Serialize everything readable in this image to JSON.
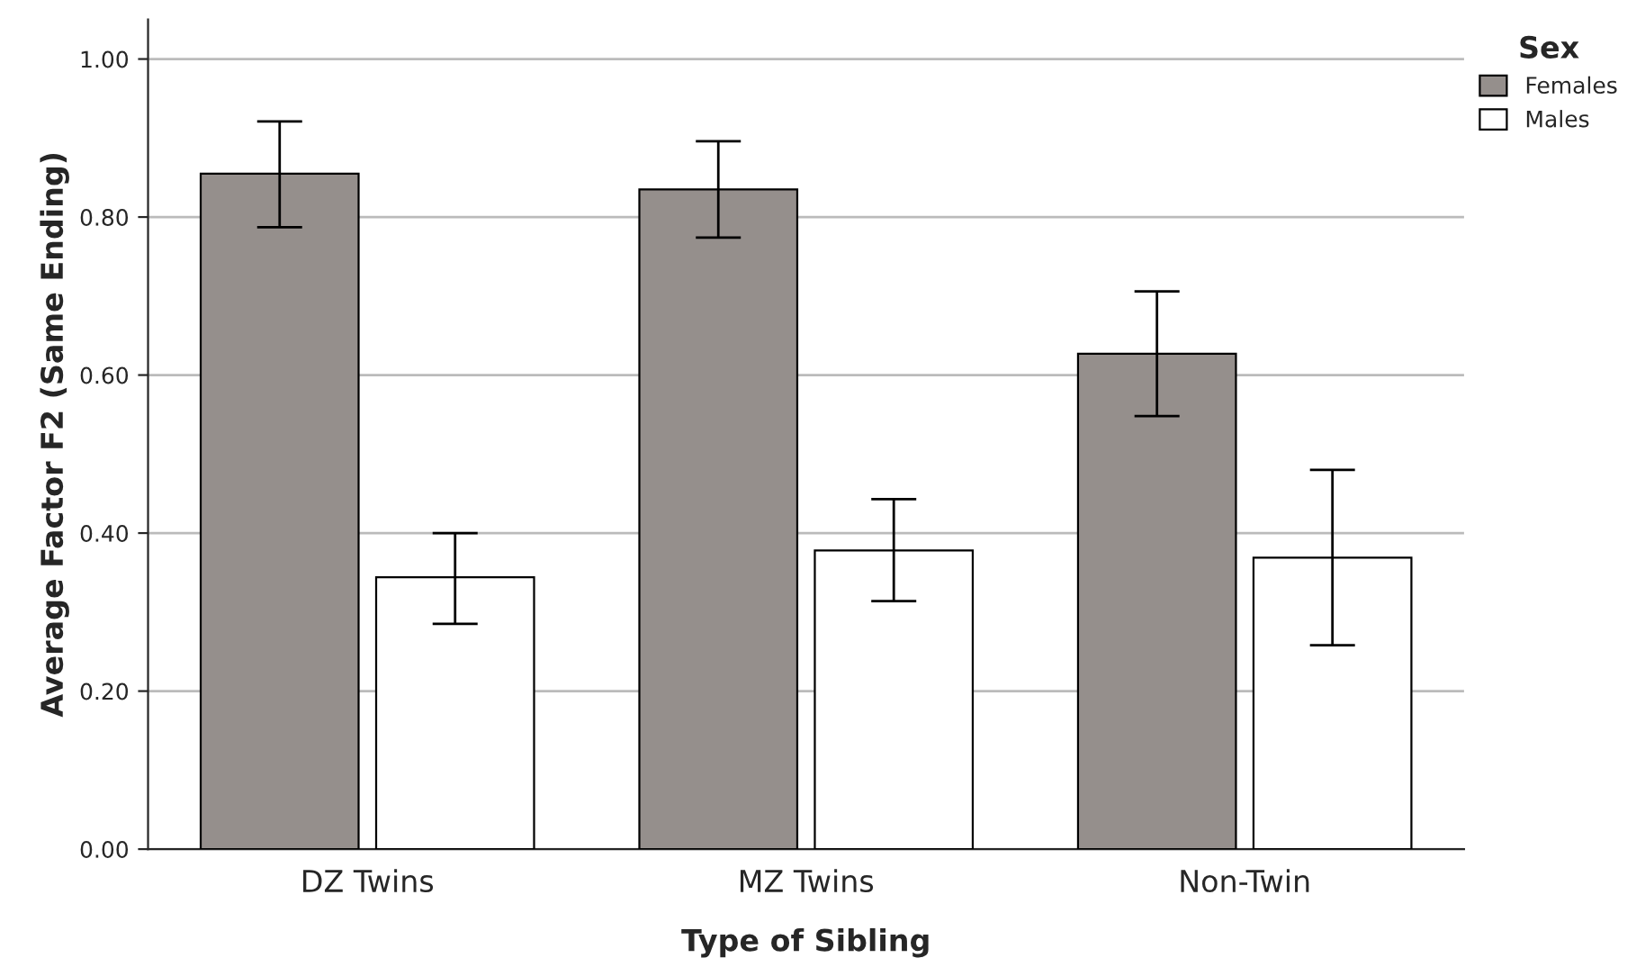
{
  "chart_data": {
    "type": "bar",
    "xlabel": "Type of Sibling",
    "ylabel": "Average Factor F2 (Same Ending)",
    "legend_title": "Sex",
    "categories": [
      "DZ Twins",
      "MZ Twins",
      "Non-Twin"
    ],
    "series": [
      {
        "name": "Females",
        "color": "#958f8c",
        "values": [
          0.855,
          0.835,
          0.627
        ],
        "errors": [
          [
            0.787,
            0.921
          ],
          [
            0.774,
            0.896
          ],
          [
            0.548,
            0.706
          ]
        ]
      },
      {
        "name": "Males",
        "color": "#ffffff",
        "values": [
          0.344,
          0.378,
          0.369
        ],
        "errors": [
          [
            0.285,
            0.4
          ],
          [
            0.314,
            0.443
          ],
          [
            0.258,
            0.48
          ]
        ]
      }
    ],
    "ylim": [
      0,
      1.05
    ],
    "yticks": [
      {
        "value": 0,
        "label": "0.00"
      },
      {
        "value": 0.2,
        "label": "0.20"
      },
      {
        "value": 0.4,
        "label": "0.40"
      },
      {
        "value": 0.6,
        "label": "0.60"
      },
      {
        "value": 0.8,
        "label": "0.80"
      },
      {
        "value": 1.0,
        "label": "1.00"
      }
    ],
    "grid": "y",
    "legend": "top right"
  }
}
